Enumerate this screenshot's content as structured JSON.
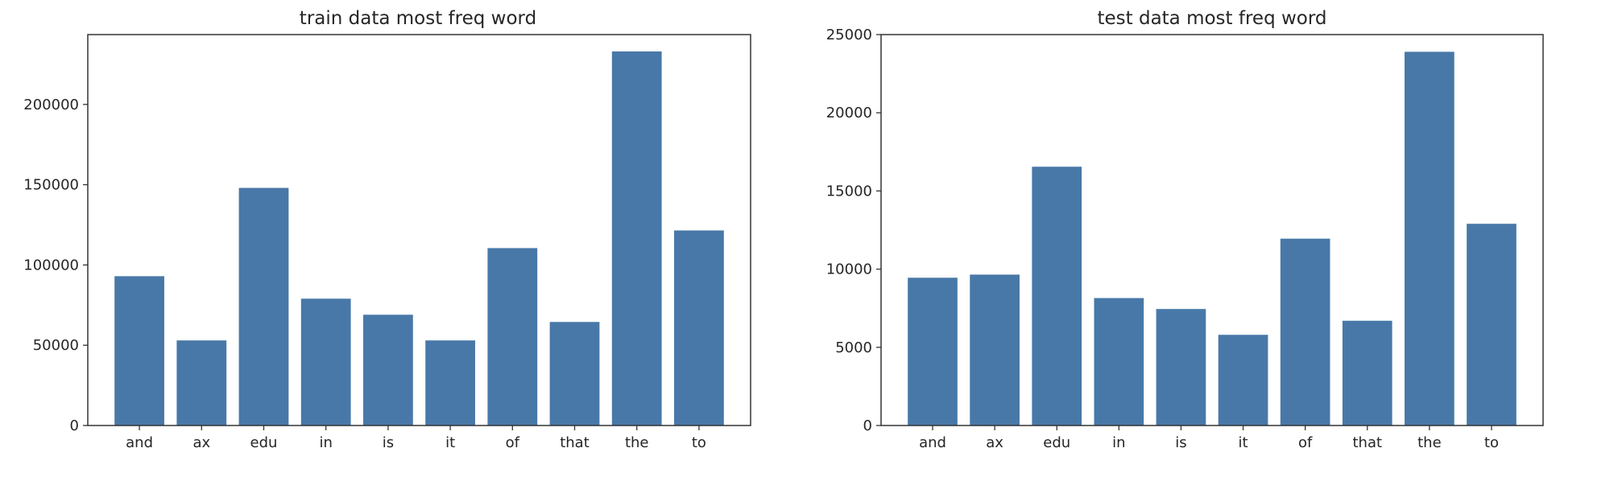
{
  "chart_data": [
    {
      "type": "bar",
      "title": "train data most freq word",
      "xlabel": "",
      "ylabel": "",
      "categories": [
        "and",
        "ax",
        "edu",
        "in",
        "is",
        "it",
        "of",
        "that",
        "the",
        "to"
      ],
      "values": [
        93000,
        53000,
        148000,
        79000,
        69000,
        53000,
        110500,
        64500,
        233000,
        121500
      ],
      "ylim": [
        0,
        243500
      ],
      "yticks": [
        0,
        50000,
        100000,
        150000,
        200000
      ],
      "ytick_labels": [
        "0",
        "50000",
        "100000",
        "150000",
        "200000"
      ],
      "bar_color": "#4878a8",
      "grid": false,
      "legend": "none"
    },
    {
      "type": "bar",
      "title": "test data most freq word",
      "xlabel": "",
      "ylabel": "",
      "categories": [
        "and",
        "ax",
        "edu",
        "in",
        "is",
        "it",
        "of",
        "that",
        "the",
        "to"
      ],
      "values": [
        9450,
        9650,
        16550,
        8150,
        7450,
        5800,
        11950,
        6700,
        23900,
        12900
      ],
      "ylim": [
        0,
        25000
      ],
      "yticks": [
        0,
        5000,
        10000,
        15000,
        20000,
        25000
      ],
      "ytick_labels": [
        "0",
        "5000",
        "10000",
        "15000",
        "20000",
        "25000"
      ],
      "bar_color": "#4878a8",
      "grid": false,
      "legend": "none"
    }
  ]
}
